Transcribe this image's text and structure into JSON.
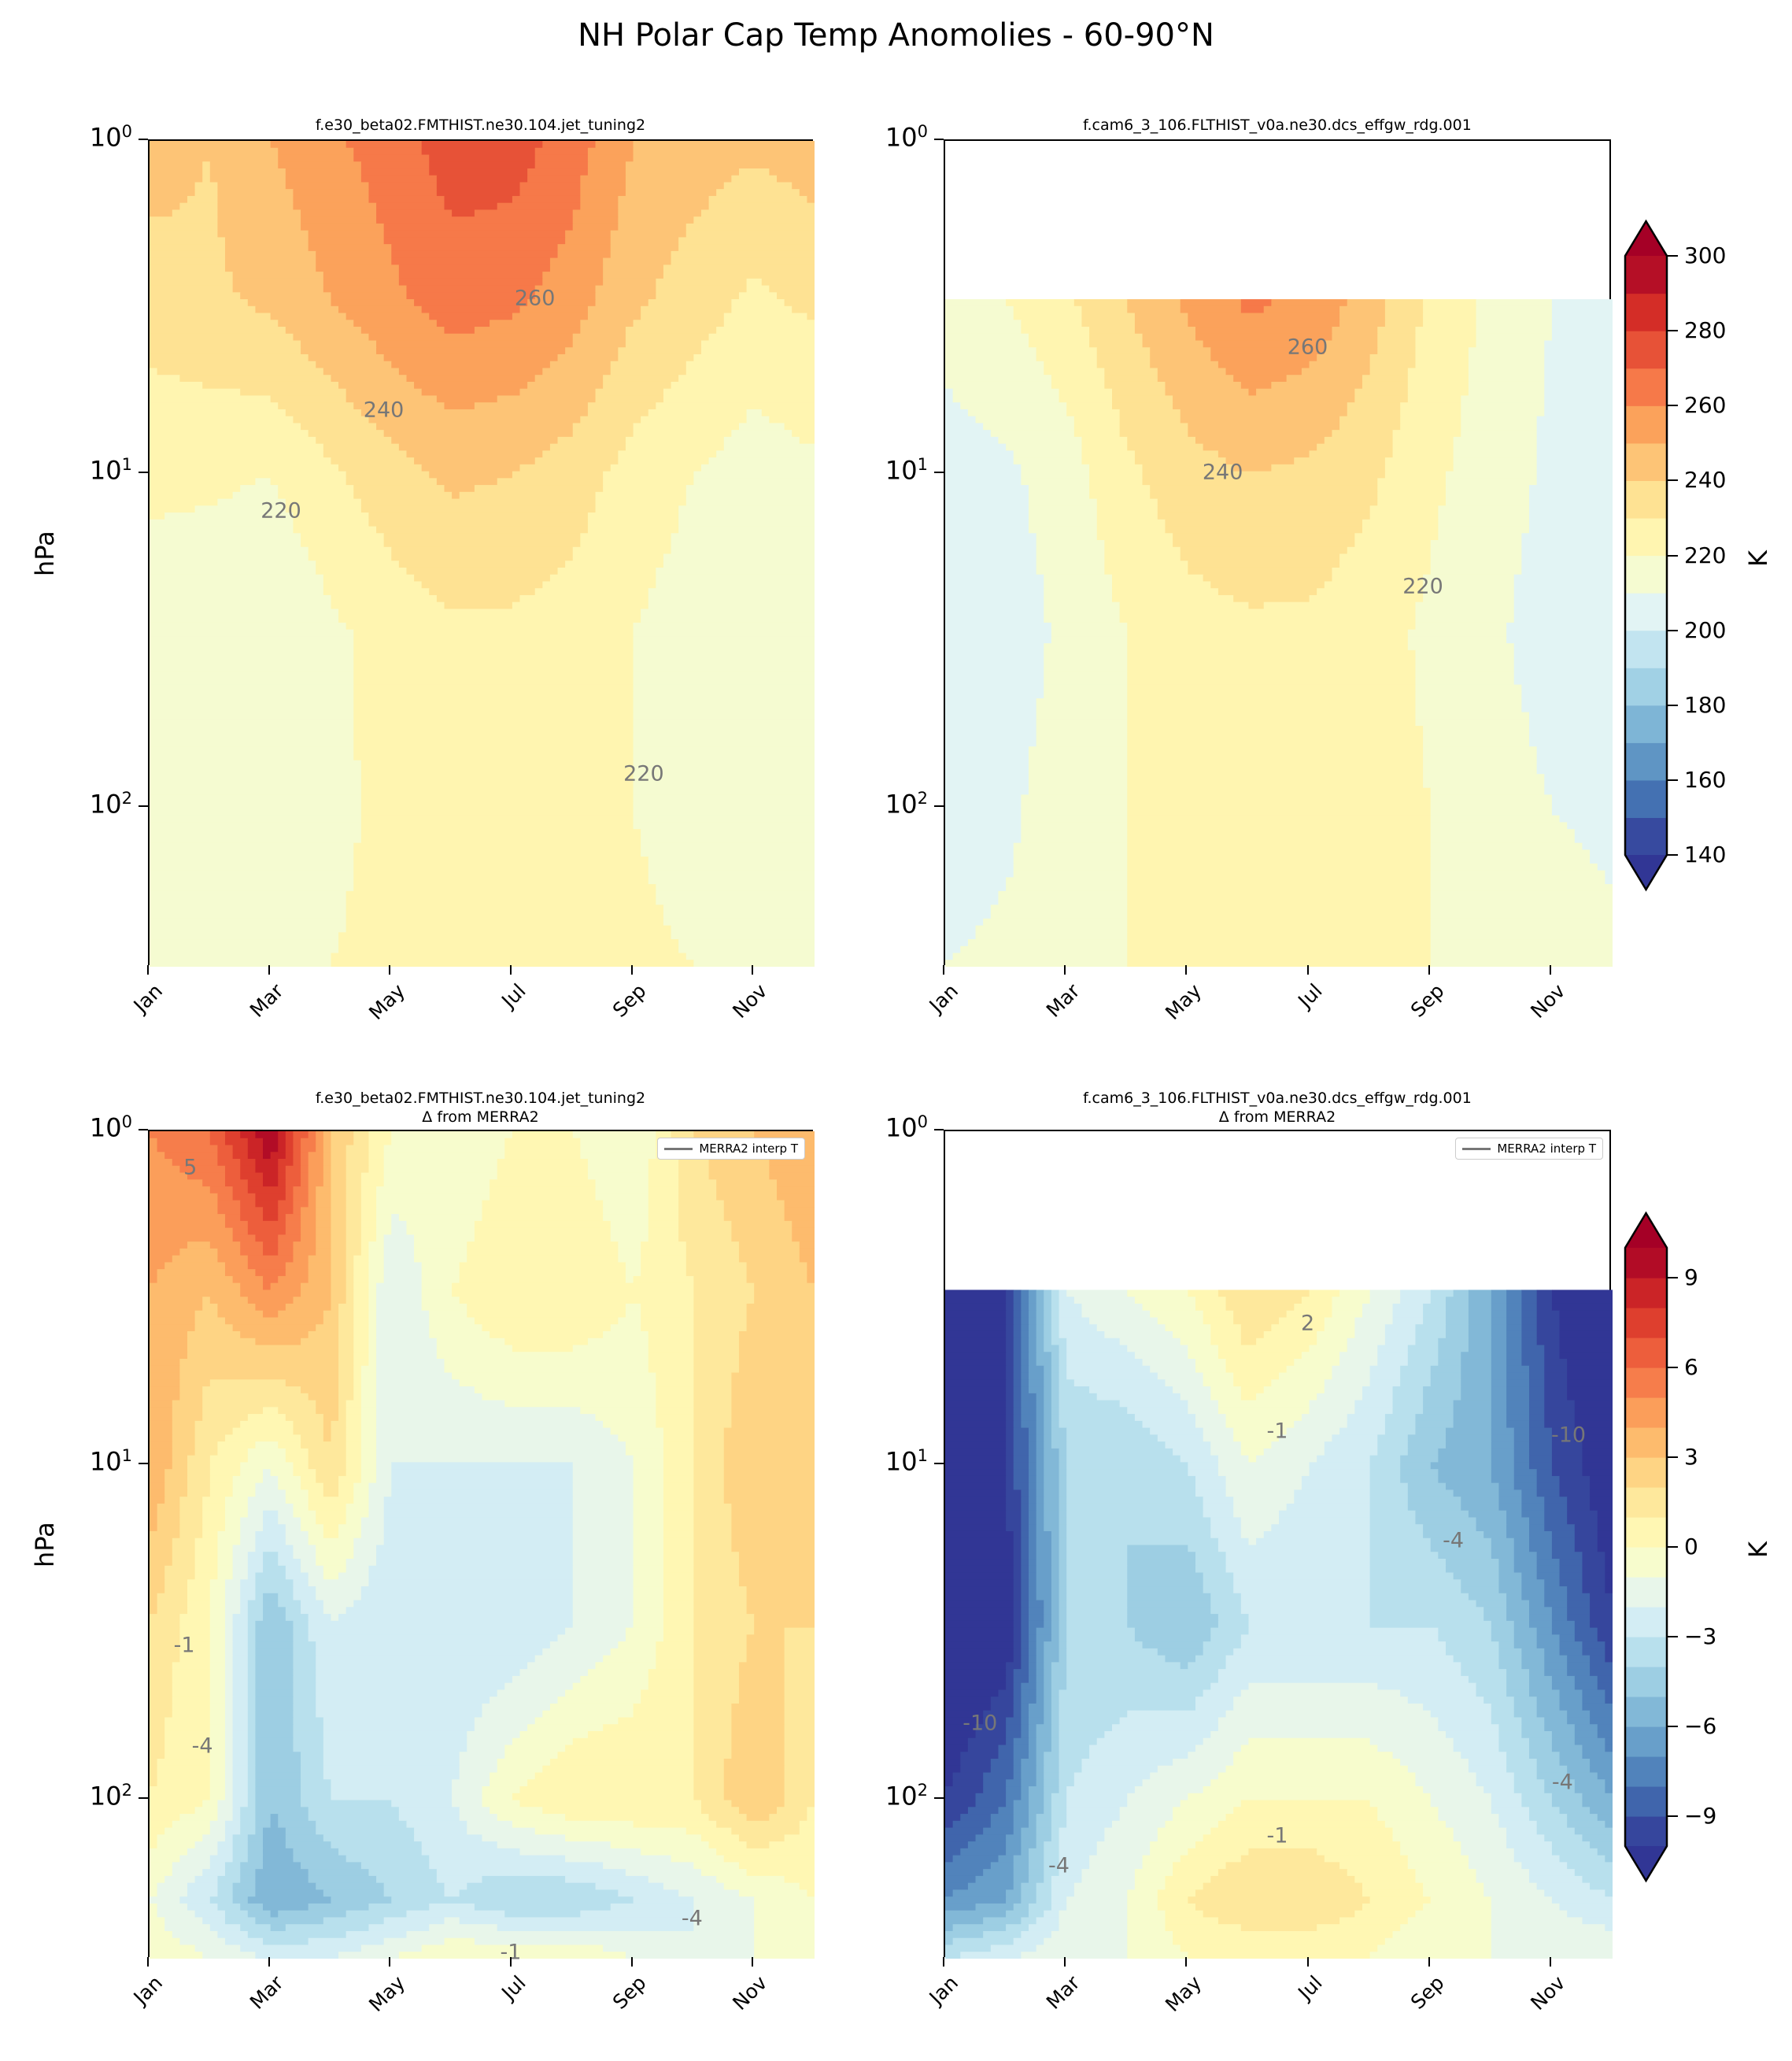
{
  "title": "NH Polar Cap Temp Anomolies - 60-90°N",
  "chart_data": [
    {
      "type": "contour",
      "title": "f.e30_beta02.FMTHIST.ne30.104.jet_tuning2",
      "subtitle": "",
      "ylabel": "hPa",
      "yscale": "log",
      "ylim": [
        1,
        300
      ],
      "xlim": [
        1,
        12
      ],
      "x_months": [
        1,
        2,
        3,
        4,
        5,
        6,
        7,
        8,
        9,
        10,
        11,
        12
      ],
      "x_tick_labels": [
        "Jan",
        "Mar",
        "May",
        "Jul",
        "Sep",
        "Nov"
      ],
      "y_tick_labels": [
        {
          "base": "10",
          "exp": "0"
        },
        {
          "base": "10",
          "exp": "1"
        },
        {
          "base": "10",
          "exp": "2"
        }
      ],
      "pressure": [
        1,
        3,
        10,
        30,
        100,
        300
      ],
      "z": [
        [
          245,
          240,
          250,
          258,
          265,
          275,
          275,
          265,
          250,
          245,
          242,
          245
        ],
        [
          235,
          238,
          242,
          250,
          258,
          265,
          262,
          255,
          242,
          235,
          228,
          232
        ],
        [
          222,
          222,
          220,
          228,
          236,
          242,
          240,
          235,
          226,
          220,
          215,
          218
        ],
        [
          215,
          212,
          210,
          218,
          224,
          228,
          228,
          225,
          220,
          215,
          210,
          212
        ],
        [
          215,
          215,
          215,
          218,
          222,
          225,
          225,
          224,
          220,
          216,
          214,
          215
        ],
        [
          218,
          218,
          218,
          220,
          222,
          224,
          225,
          224,
          222,
          220,
          218,
          218
        ]
      ],
      "contour_labels": [
        {
          "text": "260",
          "month": 7.4,
          "p": 3
        },
        {
          "text": "240",
          "month": 4.9,
          "p": 6.5
        },
        {
          "text": "220",
          "month": 3.2,
          "p": 13
        },
        {
          "text": "220",
          "month": 9.2,
          "p": 80
        }
      ],
      "colorbar": null
    },
    {
      "type": "contour",
      "title": "f.cam6_3_106.FLTHIST_v0a.ne30.dcs_effgw_rdg.001",
      "subtitle": "",
      "ylabel": "",
      "yscale": "log",
      "ylim": [
        1,
        300
      ],
      "xlim": [
        1,
        12
      ],
      "x_months": [
        1,
        2,
        3,
        4,
        5,
        6,
        7,
        8,
        9,
        10,
        11,
        12
      ],
      "x_tick_labels": [
        "Jan",
        "Mar",
        "May",
        "Jul",
        "Sep",
        "Nov"
      ],
      "y_tick_labels": [
        {
          "base": "10",
          "exp": "0"
        },
        {
          "base": "10",
          "exp": "1"
        },
        {
          "base": "10",
          "exp": "2"
        }
      ],
      "pressure": [
        3,
        10,
        30,
        100,
        300
      ],
      "z": [
        [
          215,
          220,
          228,
          240,
          252,
          262,
          258,
          245,
          228,
          218,
          210,
          210
        ],
        [
          205,
          208,
          215,
          228,
          236,
          240,
          238,
          232,
          222,
          215,
          208,
          205
        ],
        [
          202,
          205,
          212,
          220,
          226,
          228,
          228,
          224,
          218,
          212,
          205,
          203
        ],
        [
          205,
          208,
          215,
          220,
          224,
          226,
          226,
          224,
          220,
          215,
          210,
          208
        ],
        [
          210,
          212,
          215,
          220,
          224,
          225,
          226,
          224,
          220,
          216,
          214,
          212
        ]
      ],
      "contour_labels": [
        {
          "text": "260",
          "month": 7.0,
          "p": 4.2
        },
        {
          "text": "240",
          "month": 5.6,
          "p": 10
        },
        {
          "text": "220",
          "month": 8.9,
          "p": 22
        }
      ],
      "colorbar": {
        "label": "K",
        "levels_min": 140,
        "levels_max": 300,
        "step": 10,
        "ticks": [
          300,
          280,
          260,
          240,
          220,
          200,
          180,
          160,
          140
        ],
        "extend": "both",
        "cmap": "RdYlBu_r"
      }
    },
    {
      "type": "contour",
      "title": "f.e30_beta02.FMTHIST.ne30.104.jet_tuning2",
      "subtitle": "Δ from MERRA2",
      "ylabel": "hPa",
      "yscale": "log",
      "ylim": [
        1,
        300
      ],
      "xlim": [
        1,
        12
      ],
      "x_months": [
        1,
        2,
        3,
        4,
        5,
        6,
        7,
        8,
        9,
        10,
        11,
        12
      ],
      "x_tick_labels": [
        "Jan",
        "Mar",
        "May",
        "Jul",
        "Sep",
        "Nov"
      ],
      "y_tick_labels": [
        {
          "base": "10",
          "exp": "0"
        },
        {
          "base": "10",
          "exp": "1"
        },
        {
          "base": "10",
          "exp": "2"
        }
      ],
      "pressure": [
        1,
        3,
        10,
        30,
        100,
        200,
        300
      ],
      "z": [
        [
          5,
          6,
          10,
          3,
          0,
          -1,
          0,
          0,
          -1,
          2,
          3,
          4
        ],
        [
          4,
          3,
          5,
          3,
          -2,
          0,
          1,
          1,
          0,
          1,
          2,
          3
        ],
        [
          4,
          1,
          -1,
          2,
          -2,
          -2,
          -2,
          -2,
          -1,
          1,
          3,
          3
        ],
        [
          2,
          0,
          -5,
          -2,
          -3,
          -3,
          -3,
          -2,
          -1,
          1,
          2,
          2
        ],
        [
          1,
          0,
          -5,
          -3,
          -3,
          -2,
          0,
          1,
          1,
          1,
          3,
          1
        ],
        [
          -1,
          -3,
          -6,
          -5,
          -4,
          -3,
          -4,
          -4,
          -3,
          -2,
          -1,
          0
        ],
        [
          0,
          -1,
          -2,
          -2,
          -1,
          0,
          0,
          0,
          -1,
          -2,
          -1,
          0
        ]
      ],
      "contour_labels": [
        {
          "text": "5",
          "month": 1.7,
          "p": 1.3
        },
        {
          "text": "-1",
          "month": 1.6,
          "p": 35
        },
        {
          "text": "-4",
          "month": 1.9,
          "p": 70
        },
        {
          "text": "-4",
          "month": 10.0,
          "p": 230
        },
        {
          "text": "-1",
          "month": 7.0,
          "p": 290
        }
      ],
      "legend": {
        "entries": [
          "MERRA2 interp T"
        ],
        "placement": "top-right"
      },
      "colorbar": null
    },
    {
      "type": "contour",
      "title": "f.cam6_3_106.FLTHIST_v0a.ne30.dcs_effgw_rdg.001",
      "subtitle": "Δ from MERRA2",
      "ylabel": "",
      "yscale": "log",
      "ylim": [
        1,
        300
      ],
      "xlim": [
        1,
        12
      ],
      "x_months": [
        1,
        2,
        3,
        4,
        5,
        6,
        7,
        8,
        9,
        10,
        11,
        12
      ],
      "x_tick_labels": [
        "Jan",
        "Mar",
        "May",
        "Jul",
        "Sep",
        "Nov"
      ],
      "y_tick_labels": [
        {
          "base": "10",
          "exp": "0"
        },
        {
          "base": "10",
          "exp": "1"
        },
        {
          "base": "10",
          "exp": "2"
        }
      ],
      "pressure": [
        3,
        10,
        30,
        100,
        200,
        300
      ],
      "z": [
        [
          -12,
          -10,
          -2,
          -1,
          0,
          2,
          1,
          -1,
          -3,
          -6,
          -10,
          -12
        ],
        [
          -12,
          -10,
          -4,
          -4,
          -3,
          -1,
          -2,
          -3,
          -5,
          -6,
          -9,
          -11
        ],
        [
          -12,
          -11,
          -4,
          -4,
          -5,
          -3,
          -3,
          -3,
          -3,
          -4,
          -7,
          -10
        ],
        [
          -10,
          -8,
          -3,
          -2,
          -1,
          0,
          0,
          0,
          -1,
          -2,
          -4,
          -6
        ],
        [
          -7,
          -6,
          -2,
          -1,
          1,
          2,
          2,
          1,
          0,
          -1,
          -2,
          -3
        ],
        [
          -3,
          -2,
          -1,
          -1,
          0,
          0,
          0,
          0,
          -1,
          -1,
          -1,
          -1
        ]
      ],
      "contour_labels": [
        {
          "text": "2",
          "month": 7.0,
          "p": 3.8
        },
        {
          "text": "-1",
          "month": 6.5,
          "p": 8
        },
        {
          "text": "-10",
          "month": 11.3,
          "p": 8.2
        },
        {
          "text": "-4",
          "month": 9.4,
          "p": 17
        },
        {
          "text": "-10",
          "month": 1.6,
          "p": 60
        },
        {
          "text": "-4",
          "month": 2.9,
          "p": 160
        },
        {
          "text": "-1",
          "month": 6.5,
          "p": 130
        },
        {
          "text": "-4",
          "month": 11.2,
          "p": 90
        }
      ],
      "legend": {
        "entries": [
          "MERRA2 interp T"
        ],
        "placement": "top-right"
      },
      "colorbar": {
        "label": "K",
        "levels_min": -10,
        "levels_max": 10,
        "step": 1,
        "ticks": [
          9,
          6,
          3,
          0,
          -3,
          -6,
          -9
        ],
        "extend": "both",
        "cmap": "RdYlBu_r"
      }
    }
  ]
}
